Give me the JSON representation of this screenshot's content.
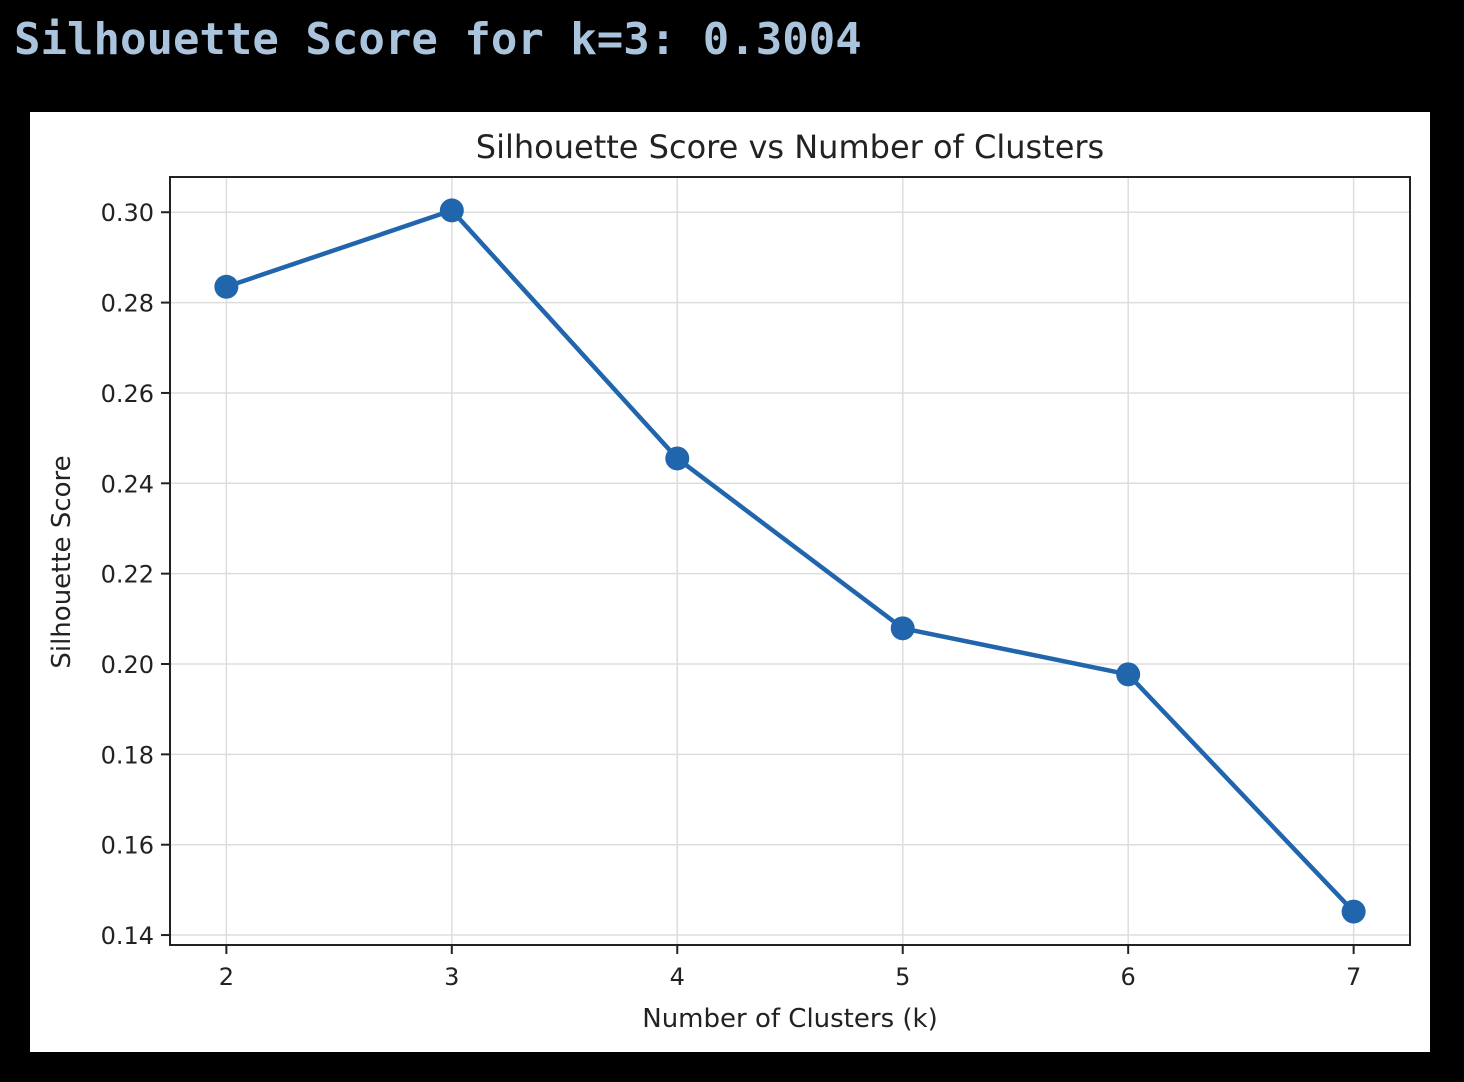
{
  "output": {
    "text": "Silhouette Score for k=3: 0.3004"
  },
  "colors": {
    "background": "#000000",
    "console_text": "#a9c4dc",
    "line": "#2166ac",
    "grid": "#dddddd"
  },
  "chart_data": {
    "type": "line",
    "title": "Silhouette Score vs Number of Clusters",
    "xlabel": "Number of Clusters (k)",
    "ylabel": "Silhouette Score",
    "x": [
      2,
      3,
      4,
      5,
      6,
      7
    ],
    "series": [
      {
        "values": [
          0.2835,
          0.3004,
          0.2455,
          0.2079,
          0.1977,
          0.1452
        ],
        "marker": "circle"
      }
    ],
    "xticks": [
      "2",
      "3",
      "4",
      "5",
      "6",
      "7"
    ],
    "yticks": [
      "0.14",
      "0.16",
      "0.18",
      "0.20",
      "0.22",
      "0.24",
      "0.26",
      "0.28",
      "0.30"
    ],
    "xlim": [
      1.75,
      7.25
    ],
    "ylim": [
      0.1378,
      0.3078
    ],
    "grid": true,
    "legend": "none"
  }
}
